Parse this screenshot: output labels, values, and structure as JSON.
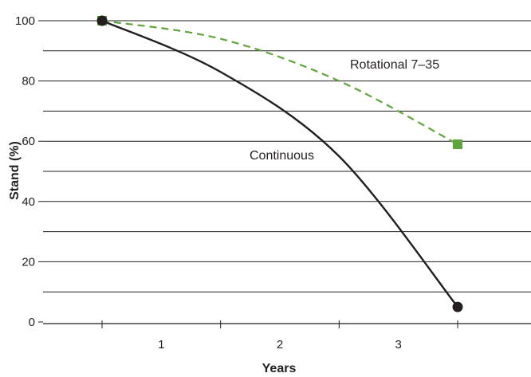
{
  "chart_data": {
    "type": "line",
    "title": "",
    "xlabel": "Years",
    "ylabel": "Stand (%)",
    "xlim": [
      0,
      3.5
    ],
    "ylim": [
      0,
      100
    ],
    "x_ticks": [
      "1",
      "2",
      "3"
    ],
    "y_ticks": [
      "0",
      "20",
      "40",
      "60",
      "80",
      "100"
    ],
    "grid": "horizontal",
    "legend": "none",
    "series": [
      {
        "name": "Rotational 7–35",
        "color": "#5fa53b",
        "line_style": "dashed",
        "marker": "square",
        "points": [
          {
            "x": 0.5,
            "y": 100
          },
          {
            "x": 1.5,
            "y": 94
          },
          {
            "x": 2.5,
            "y": 80
          },
          {
            "x": 3.5,
            "y": 59
          }
        ]
      },
      {
        "name": "Continuous",
        "color": "#231f20",
        "line_style": "solid",
        "marker": "circle",
        "points": [
          {
            "x": 0.5,
            "y": 100
          },
          {
            "x": 1.5,
            "y": 83
          },
          {
            "x": 2.5,
            "y": 55
          },
          {
            "x": 3.5,
            "y": 5
          }
        ]
      }
    ]
  }
}
